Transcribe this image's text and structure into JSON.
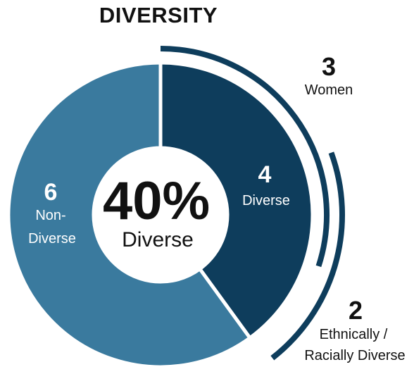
{
  "chart_data": {
    "type": "pie",
    "title": "DIVERSITY",
    "categories": [
      "Diverse",
      "Non-Diverse"
    ],
    "values": [
      4,
      6
    ],
    "colors": [
      "#0e3d5c",
      "#3a7a9e"
    ],
    "center": {
      "value": "40%",
      "label": "Diverse"
    },
    "segments": [
      {
        "value": "4",
        "label_lines": [
          "Diverse"
        ]
      },
      {
        "value": "6",
        "label_lines": [
          "Non-",
          "Diverse"
        ]
      }
    ],
    "annotations": [
      {
        "value": "3",
        "label_lines": [
          "Women"
        ],
        "count": 3
      },
      {
        "value": "2",
        "label_lines": [
          "Ethnically /",
          "Racially Diverse"
        ],
        "count": 2
      }
    ],
    "arc_color": "#0e3d5c"
  }
}
